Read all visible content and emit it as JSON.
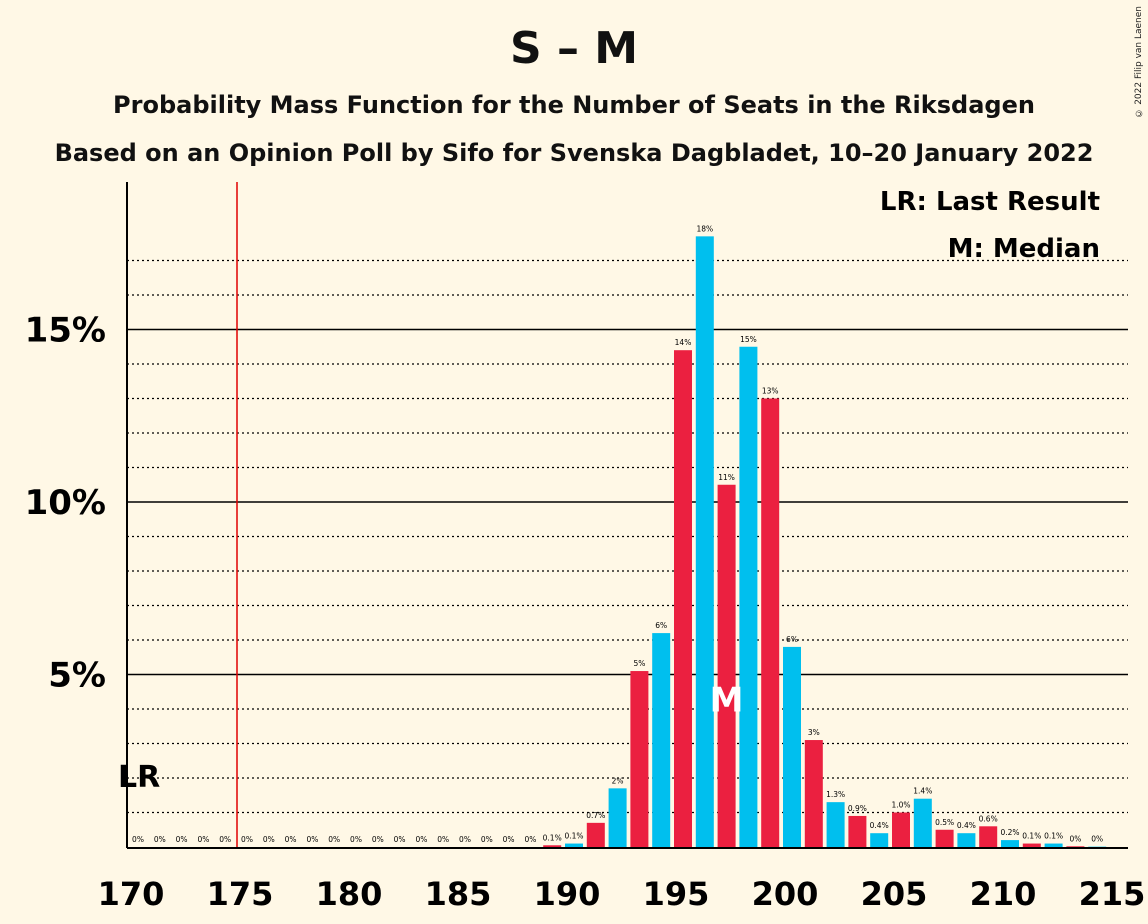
{
  "title": "S – M",
  "subtitle_1": "Probability Mass Function for the Number of Seats in the Riksdagen",
  "subtitle_2": "Based on an Opinion Poll by Sifo for Svenska Dagbladet, 10–20 January 2022",
  "copyright": "© 2022 Filip van Laenen",
  "legend": {
    "last_result": "LR: Last Result",
    "median": "M: Median"
  },
  "colors": {
    "background": "#FFF8E6",
    "blue": "#00BFEE",
    "red": "#EB2040",
    "last_result_line": "#E00000"
  },
  "chart_data": {
    "type": "bar",
    "x_ticks": [
      170,
      175,
      180,
      185,
      190,
      195,
      200,
      205,
      210,
      215
    ],
    "y_ticks": [
      5,
      10,
      15
    ],
    "y_tick_labels": [
      "5%",
      "10%",
      "15%"
    ],
    "xlim": [
      170,
      215
    ],
    "ylim": [
      0,
      19
    ],
    "last_result": 175,
    "last_result_label": "LR",
    "median": 197,
    "median_label": "M",
    "seats": [
      170,
      171,
      172,
      173,
      174,
      175,
      176,
      177,
      178,
      179,
      180,
      181,
      182,
      183,
      184,
      185,
      186,
      187,
      188,
      189,
      190,
      191,
      192,
      193,
      194,
      195,
      196,
      197,
      198,
      199,
      200,
      201,
      202,
      203,
      204,
      205,
      206,
      207,
      208,
      209,
      210,
      211,
      212,
      213,
      214
    ],
    "values": [
      0,
      0,
      0,
      0,
      0,
      0,
      0,
      0,
      0,
      0,
      0,
      0,
      0,
      0,
      0,
      0,
      0,
      0,
      0,
      0.05,
      0.1,
      0.7,
      1.7,
      5.1,
      6.2,
      14.4,
      17.7,
      10.5,
      14.5,
      13.0,
      5.8,
      3.1,
      1.3,
      0.9,
      0.4,
      1.0,
      1.4,
      0.5,
      0.4,
      0.6,
      0.2,
      0.1,
      0.1,
      0.02,
      0.01
    ],
    "labels": [
      "0%",
      "0%",
      "0%",
      "0%",
      "0%",
      "0%",
      "0%",
      "0%",
      "0%",
      "0%",
      "0%",
      "0%",
      "0%",
      "0%",
      "0%",
      "0%",
      "0%",
      "0%",
      "0%",
      "0.1%",
      "0.1%",
      "0.7%",
      "2%",
      "5%",
      "6%",
      "14%",
      "18%",
      "11%",
      "15%",
      "13%",
      "6%",
      "3%",
      "1.3%",
      "0.9%",
      "0.4%",
      "1.0%",
      "1.4%",
      "0.5%",
      "0.4%",
      "0.6%",
      "0.2%",
      "0.1%",
      "0.1%",
      "0%",
      "0%"
    ]
  }
}
